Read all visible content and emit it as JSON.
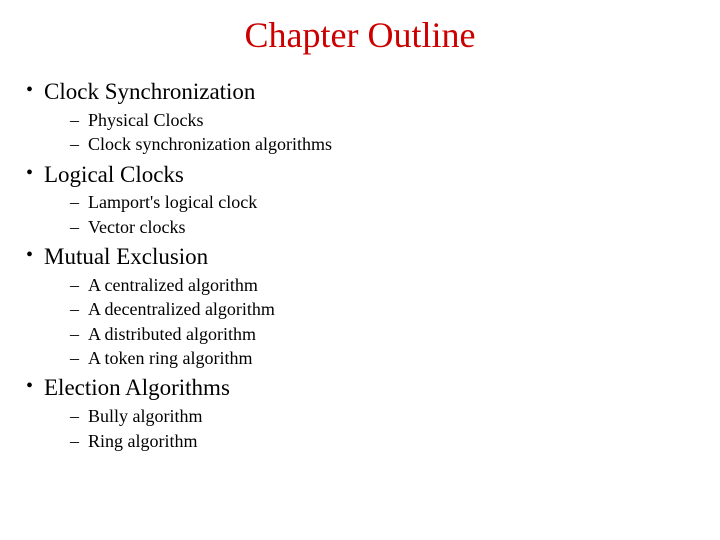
{
  "title": {
    "text": "Chapter Outline",
    "color": "#cc0000",
    "fontsize": 36
  },
  "body": {
    "text_color": "#000000",
    "level1_fontsize": 23,
    "level2_fontsize": 18,
    "bullet_level1": "•",
    "bullet_level2": "–"
  },
  "outline": [
    {
      "label": "Clock Synchronization",
      "sub": [
        "Physical Clocks",
        "Clock synchronization algorithms"
      ]
    },
    {
      "label": "Logical Clocks",
      "sub": [
        "Lamport's logical clock",
        "Vector clocks"
      ]
    },
    {
      "label": "Mutual Exclusion",
      "sub": [
        "A centralized algorithm",
        "A decentralized algorithm",
        "A distributed algorithm",
        "A token ring algorithm"
      ]
    },
    {
      "label": "Election Algorithms",
      "sub": [
        "Bully algorithm",
        "Ring algorithm"
      ]
    }
  ]
}
